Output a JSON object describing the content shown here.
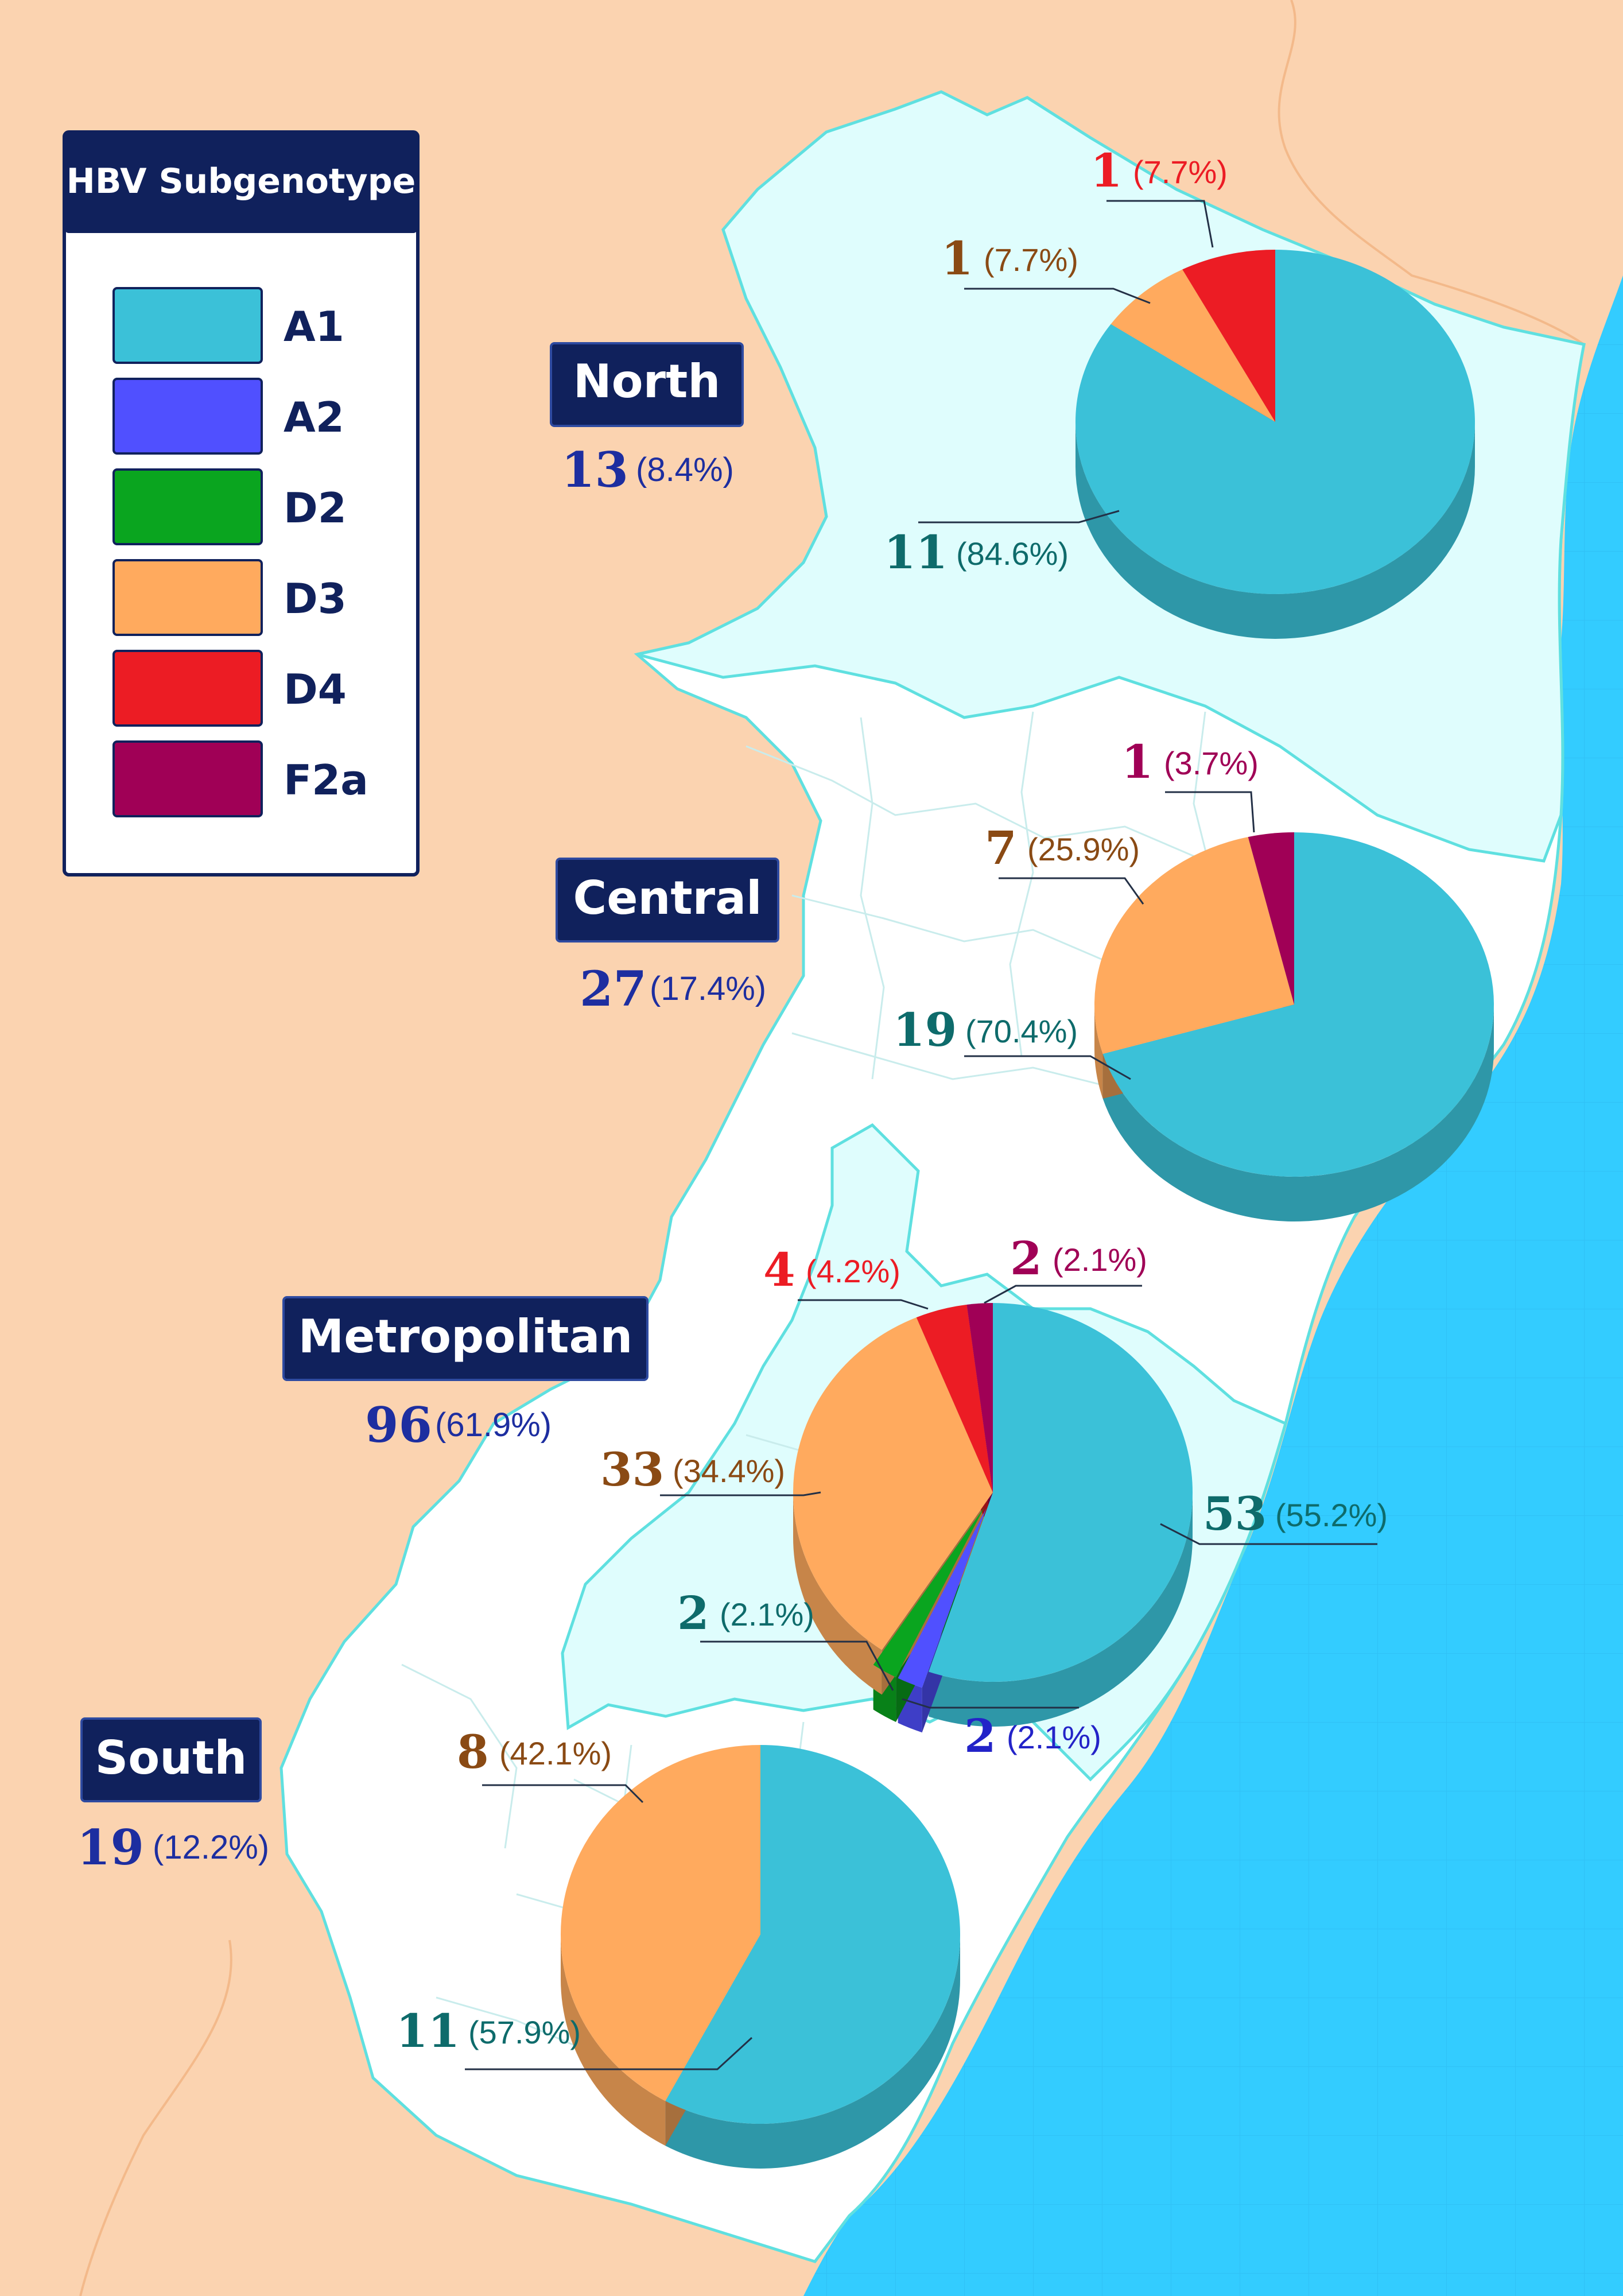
{
  "colors": {
    "A1": "#3bc1d8",
    "A2": "#5050ff",
    "D2": "#0aa51f",
    "D3": "#ffaa5e",
    "D4": "#ec1c24",
    "F2a": "#a00056",
    "navy": "#10215c",
    "ocean": "#33ccff",
    "land": "#fbd3b0",
    "region_tint": "#dffdfd"
  },
  "legend": {
    "title": "HBV Subgenotype",
    "items": [
      {
        "key": "A1",
        "label": "A1"
      },
      {
        "key": "A2",
        "label": "A2"
      },
      {
        "key": "D2",
        "label": "D2"
      },
      {
        "key": "D3",
        "label": "D3"
      },
      {
        "key": "D4",
        "label": "D4"
      },
      {
        "key": "F2a",
        "label": "F2a"
      }
    ]
  },
  "chart_data": [
    {
      "type": "pie",
      "region": "North",
      "total": "13",
      "total_pct": "(8.4%)",
      "slices": [
        {
          "subgenotype": "A1",
          "count": "11",
          "pct": "(84.6%)",
          "value": 11
        },
        {
          "subgenotype": "D3",
          "count": "1",
          "pct": "(7.7%)",
          "value": 1
        },
        {
          "subgenotype": "D4",
          "count": "1",
          "pct": "(7.7%)",
          "value": 1
        }
      ]
    },
    {
      "type": "pie",
      "region": "Central",
      "total": "27",
      "total_pct": "(17.4%)",
      "slices": [
        {
          "subgenotype": "A1",
          "count": "19",
          "pct": "(70.4%)",
          "value": 19
        },
        {
          "subgenotype": "D3",
          "count": "7",
          "pct": "(25.9%)",
          "value": 7
        },
        {
          "subgenotype": "F2a",
          "count": "1",
          "pct": "(3.7%)",
          "value": 1
        }
      ]
    },
    {
      "type": "pie",
      "region": "Metropolitan",
      "total": "96",
      "total_pct": "(61.9%)",
      "slices": [
        {
          "subgenotype": "A1",
          "count": "53",
          "pct": "(55.2%)",
          "value": 53
        },
        {
          "subgenotype": "A2",
          "count": "2",
          "pct": "(2.1%)",
          "value": 2
        },
        {
          "subgenotype": "D2",
          "count": "2",
          "pct": "(2.1%)",
          "value": 2
        },
        {
          "subgenotype": "D3",
          "count": "33",
          "pct": "(34.4%)",
          "value": 33
        },
        {
          "subgenotype": "D4",
          "count": "4",
          "pct": "(4.2%)",
          "value": 4
        },
        {
          "subgenotype": "F2a",
          "count": "2",
          "pct": "(2.1%)",
          "value": 2
        }
      ]
    },
    {
      "type": "pie",
      "region": "South",
      "total": "19",
      "total_pct": "(12.2%)",
      "slices": [
        {
          "subgenotype": "A1",
          "count": "11",
          "pct": "(57.9%)",
          "value": 11
        },
        {
          "subgenotype": "D3",
          "count": "8",
          "pct": "(42.1%)",
          "value": 8
        }
      ]
    }
  ]
}
